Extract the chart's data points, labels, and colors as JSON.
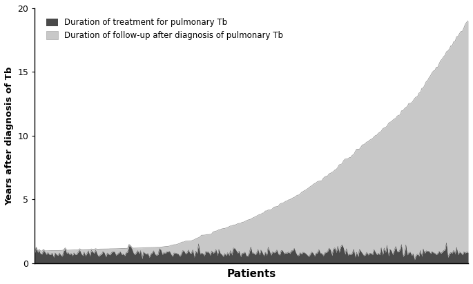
{
  "n_patients": 300,
  "ylabel": "Years after diagnosis of Tb",
  "xlabel": "Patients",
  "ylim": [
    0,
    20
  ],
  "yticks": [
    0,
    5,
    10,
    15,
    20
  ],
  "dark_color": "#4a4a4a",
  "light_color": "#c8c8c8",
  "legend_label_dark": "Duration of treatment for pulmonary Tb",
  "legend_label_light": "Duration of follow-up after diagnosis of pulmonary Tb",
  "background_color": "#ffffff",
  "seed": 42,
  "curve_control_points_p": [
    0.0,
    0.3,
    0.38,
    0.5,
    0.6,
    0.68,
    0.75,
    0.82,
    0.88,
    0.92,
    0.96,
    1.0
  ],
  "curve_control_points_val": [
    1.0,
    1.2,
    2.0,
    3.5,
    5.2,
    7.0,
    9.0,
    11.0,
    13.0,
    15.0,
    17.0,
    19.0
  ]
}
